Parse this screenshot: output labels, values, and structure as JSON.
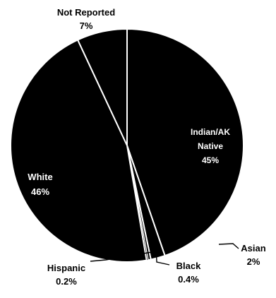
{
  "chart_data": {
    "type": "pie",
    "title": "",
    "slices": [
      {
        "label": "American Indian/Alaska Native",
        "label_lines": [
          "Indian/AK",
          "Native",
          "45%"
        ],
        "value": 45,
        "display": "45%",
        "color": "#000000",
        "label_color": "#ffffff",
        "label_position": "inside"
      },
      {
        "label": "Asian",
        "label_lines": [
          "Asian",
          "2%"
        ],
        "value": 2,
        "display": "2%",
        "color": "#000000",
        "label_color": "#000000",
        "label_position": "outside"
      },
      {
        "label": "Black",
        "label_lines": [
          "Black",
          "0.4%"
        ],
        "value": 0.4,
        "display": "0.4%",
        "color": "#000000",
        "label_color": "#000000",
        "label_position": "outside"
      },
      {
        "label": "Hispanic",
        "label_lines": [
          "Hispanic",
          "0.2%"
        ],
        "value": 0.2,
        "display": "0.2%",
        "color": "#000000",
        "label_color": "#000000",
        "label_position": "outside"
      },
      {
        "label": "White",
        "label_lines": [
          "White",
          "46%"
        ],
        "value": 46,
        "display": "46%",
        "color": "#000000",
        "label_color": "#ffffff",
        "label_position": "inside"
      },
      {
        "label": "Not Reported",
        "label_lines": [
          "Not Reported",
          "7%"
        ],
        "value": 7,
        "display": "7%",
        "color": "#000000",
        "label_color": "#000000",
        "label_position": "outside"
      }
    ],
    "slice_border_color": "#ffffff",
    "leader_line_color": "#000000",
    "legend": "none"
  }
}
